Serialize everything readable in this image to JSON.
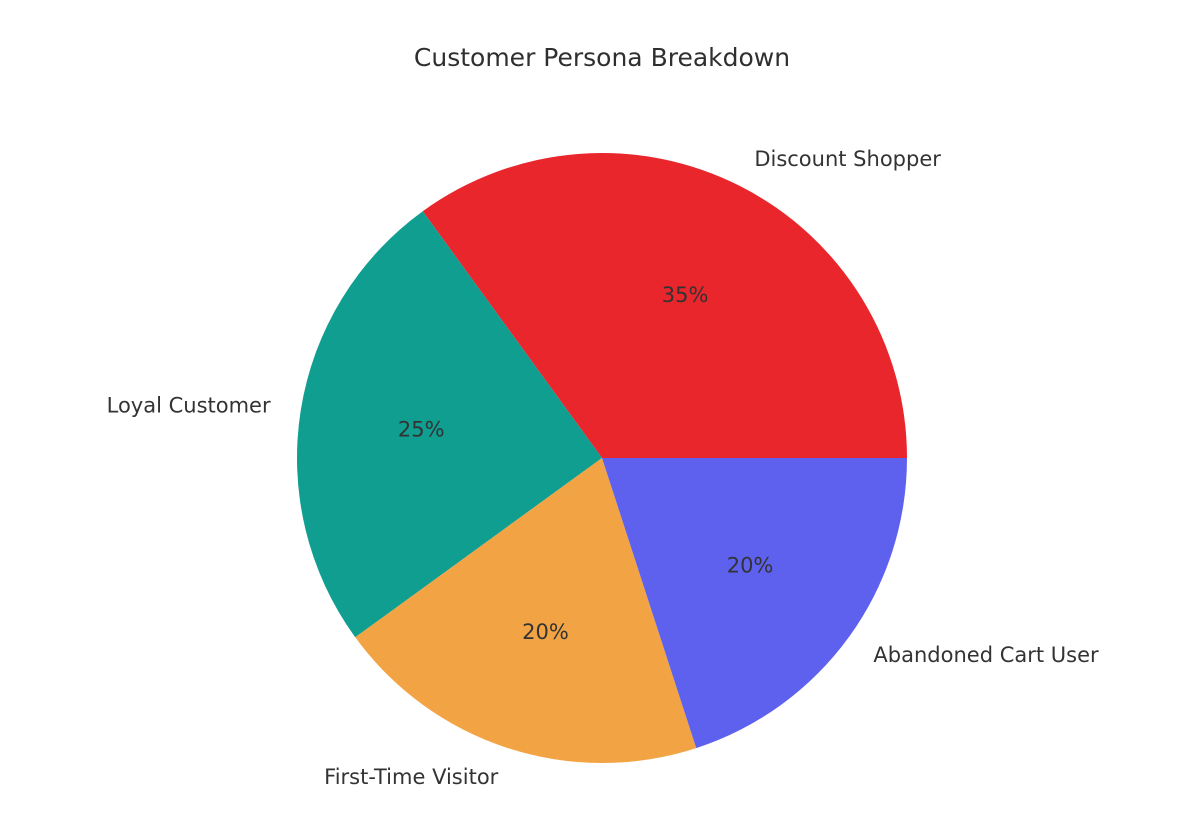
{
  "chart_data": {
    "type": "pie",
    "title": "Customer Persona Breakdown",
    "categories": [
      "Discount Shopper",
      "Loyal Customer",
      "First-Time Visitor",
      "Abandoned Cart User"
    ],
    "values": [
      35,
      25,
      20,
      20
    ],
    "value_labels": [
      "35%",
      "25%",
      "20%",
      "20%"
    ],
    "colors": [
      "#e8262b",
      "#0f9e8f",
      "#f2a444",
      "#5d61ee"
    ],
    "start_angle_deg": 0,
    "direction": "counterclockwise",
    "legend": "none"
  }
}
